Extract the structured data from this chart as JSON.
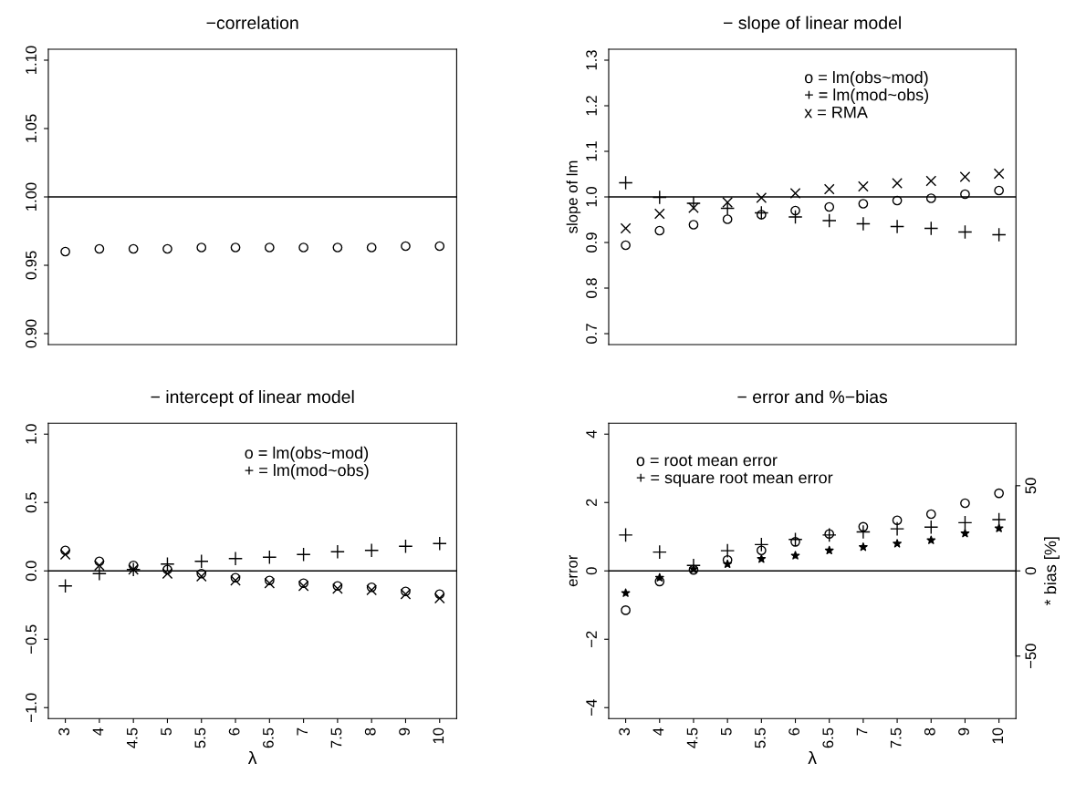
{
  "chart_data": [
    {
      "type": "scatter",
      "title": "−correlation",
      "categories": [
        null,
        null,
        null,
        null,
        null,
        null,
        null,
        null,
        null,
        null,
        null,
        null
      ],
      "ylim": [
        0.892,
        1.108
      ],
      "yticks": [
        {
          "value": 0.9,
          "label": "0.90"
        },
        {
          "value": 0.95,
          "label": "0.95"
        },
        {
          "value": 1.0,
          "label": "1.00"
        },
        {
          "value": 1.05,
          "label": "1.05"
        },
        {
          "value": 1.1,
          "label": "1.10"
        }
      ],
      "tick_labels": "y",
      "grid": false,
      "ref_lines": [
        {
          "axis": "y",
          "value": 1.0,
          "label": null,
          "color": "#000000"
        }
      ],
      "series": [
        {
          "color": "#000000",
          "marker": "circle",
          "values": [
            0.96,
            0.962,
            0.962,
            0.962,
            0.963,
            0.963,
            0.963,
            0.963,
            0.963,
            0.963,
            0.964,
            0.964
          ]
        }
      ]
    },
    {
      "type": "scatter",
      "title": "− slope of linear model",
      "ylabel": "slope of lm",
      "categories": [
        null,
        null,
        null,
        null,
        null,
        null,
        null,
        null,
        null,
        null,
        null,
        null
      ],
      "ylim": [
        0.676,
        1.324
      ],
      "yticks": [
        0.7,
        0.8,
        0.9,
        {
          "value": 1.0,
          "label": "1.0"
        },
        1.1,
        1.2,
        1.3
      ],
      "tick_labels": "y",
      "grid": false,
      "ref_lines": [
        {
          "axis": "y",
          "value": 1.0,
          "label": null,
          "color": "#000000"
        }
      ],
      "annotations": [
        "o = lm(obs~mod)",
        "+ = lm(mod~obs)",
        "x = RMA"
      ],
      "series": [
        {
          "color": "#000000",
          "marker": "circle",
          "values": [
            0.894,
            0.926,
            0.939,
            0.951,
            0.961,
            0.97,
            0.978,
            0.985,
            0.992,
            0.997,
            1.006,
            1.014
          ]
        },
        {
          "color": "#000000",
          "marker": "plus",
          "values": [
            1.031,
            0.999,
            0.986,
            0.975,
            0.965,
            0.956,
            0.948,
            0.941,
            0.935,
            0.931,
            0.923,
            0.917
          ]
        },
        {
          "color": "#000000",
          "marker": "cross",
          "values": [
            0.931,
            0.963,
            0.976,
            0.988,
            0.998,
            1.008,
            1.017,
            1.023,
            1.03,
            1.035,
            1.044,
            1.051
          ]
        }
      ]
    },
    {
      "type": "scatter",
      "title": "− intercept of linear model",
      "xlabel": "λ",
      "categories": [
        "3",
        "4",
        "4.5",
        "5",
        "5.5",
        "6",
        "6.5",
        "7",
        "7.5",
        "8",
        "9",
        "10"
      ],
      "ylim": [
        -1.08,
        1.08
      ],
      "yticks": [
        {
          "value": -1.0,
          "label": "−1.0"
        },
        {
          "value": -0.5,
          "label": "−0.5"
        },
        {
          "value": 0.0,
          "label": "0.0"
        },
        0.5,
        {
          "value": 1.0,
          "label": "1.0"
        }
      ],
      "grid": false,
      "ref_lines": [
        {
          "axis": "y",
          "value": 0.0,
          "label": null,
          "color": "#000000"
        }
      ],
      "annotations": [
        "o = lm(obs~mod)",
        "+ = lm(mod~obs)"
      ],
      "series": [
        {
          "color": "#000000",
          "marker": "circle",
          "values": [
            0.15,
            0.07,
            0.04,
            0.01,
            -0.02,
            -0.05,
            -0.07,
            -0.09,
            -0.11,
            -0.12,
            -0.15,
            -0.17
          ]
        },
        {
          "color": "#000000",
          "marker": "plus",
          "values": [
            -0.11,
            -0.02,
            0.01,
            0.05,
            0.07,
            0.09,
            0.1,
            0.12,
            0.14,
            0.15,
            0.18,
            0.2
          ]
        },
        {
          "color": "#000000",
          "marker": "cross",
          "values": [
            0.12,
            0.04,
            0.01,
            -0.02,
            -0.04,
            -0.07,
            -0.09,
            -0.11,
            -0.13,
            -0.14,
            -0.17,
            -0.2
          ]
        }
      ]
    },
    {
      "type": "scatter",
      "title": "− error and %−bias",
      "xlabel": "λ",
      "ylabel": "error",
      "y2label": "* bias [%]",
      "categories": [
        "3",
        "4",
        "4.5",
        "5",
        "5.5",
        "6",
        "6.5",
        "7",
        "7.5",
        "8",
        "9",
        "10"
      ],
      "ylim": [
        -4.32,
        4.32
      ],
      "yticks": [
        {
          "value": -4,
          "label": "−4"
        },
        {
          "value": -2,
          "label": "−2"
        },
        0,
        2,
        4
      ],
      "y2lim": [
        -86.7,
        86.7
      ],
      "y2ticks": [
        {
          "value": -50,
          "label": "−50"
        },
        0,
        50
      ],
      "grid": false,
      "ref_lines": [
        {
          "axis": "y",
          "value": 0.0,
          "label": null,
          "color": "#000000"
        }
      ],
      "annotations": [
        "o = root mean error",
        "+ = square root mean error"
      ],
      "series": [
        {
          "color": "#000000",
          "marker": "circle",
          "values": [
            -1.15,
            -0.31,
            0.03,
            0.32,
            0.6,
            0.85,
            1.08,
            1.29,
            1.48,
            1.66,
            1.98,
            2.27
          ]
        },
        {
          "color": "#000000",
          "marker": "plus",
          "values": [
            1.05,
            0.55,
            0.16,
            0.59,
            0.77,
            0.92,
            1.05,
            1.14,
            1.23,
            1.28,
            1.41,
            1.5
          ]
        },
        {
          "color": "#000000",
          "marker": "star",
          "axis": "y2",
          "values": [
            -13,
            -4,
            1,
            4,
            7,
            9,
            12,
            14,
            16,
            18,
            22,
            25
          ]
        }
      ]
    }
  ]
}
